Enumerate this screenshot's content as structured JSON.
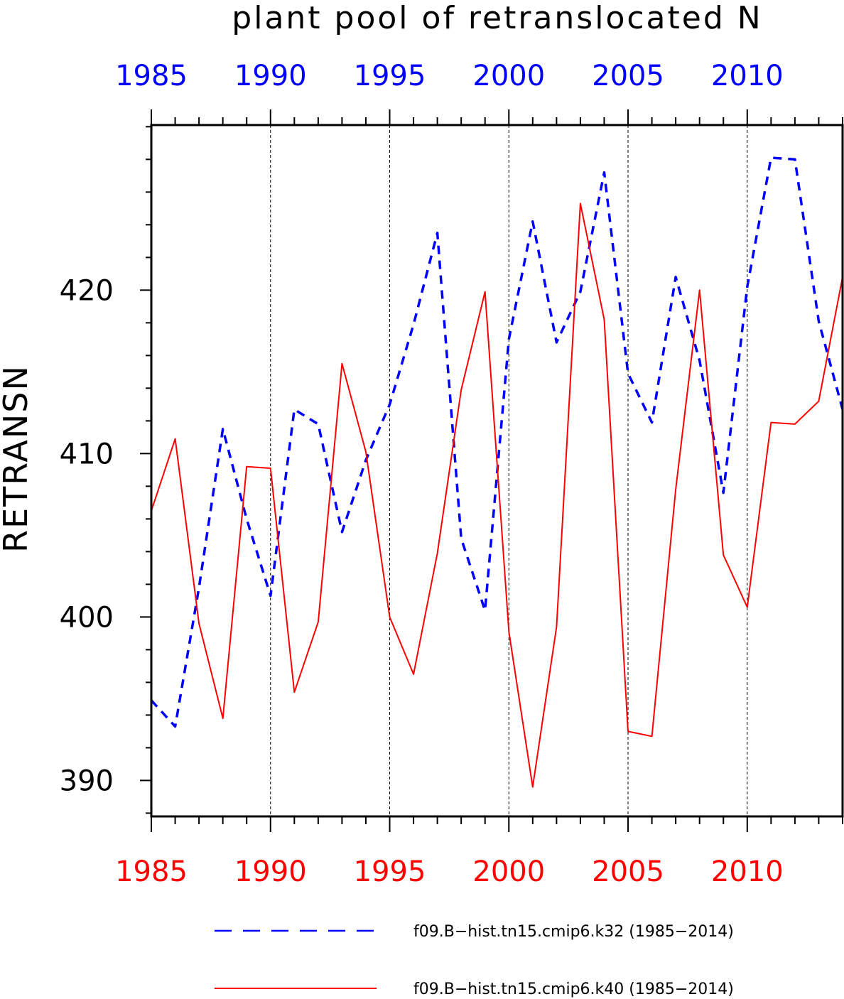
{
  "chart_data": {
    "type": "line",
    "title": "plant pool of retranslocated N",
    "ylabel": "RETRANSN",
    "xlabel": "",
    "xlim": [
      1985,
      2014
    ],
    "ylim": [
      387.8,
      430.1
    ],
    "y_major_ticks": [
      390,
      400,
      410,
      420
    ],
    "y_minor_step": 2,
    "x_major_ticks": [
      1985,
      1990,
      1995,
      2000,
      2005,
      2010
    ],
    "x_tick_labels": [
      "1985",
      "1990",
      "1995",
      "2000",
      "2005",
      "2010"
    ],
    "x_minor_step": 1,
    "vertical_grid": [
      1990,
      1995,
      2000,
      2005,
      2010
    ],
    "grid": "vertical dashed at major years",
    "legend_position": "bottom",
    "top_axis_color": "#0000ff",
    "bottom_axis_color": "#ff0000",
    "x": [
      1985,
      1986,
      1987,
      1988,
      1989,
      1990,
      1991,
      1992,
      1993,
      1994,
      1995,
      1996,
      1997,
      1998,
      1999,
      2000,
      2001,
      2002,
      2003,
      2004,
      2005,
      2006,
      2007,
      2008,
      2009,
      2010,
      2011,
      2012,
      2013,
      2014
    ],
    "series": [
      {
        "name": "f09.B−hist.tn15.cmip6.k32 (1985−2014)",
        "color": "#0000ff",
        "dash": "dashed",
        "values": [
          394.9,
          393.3,
          401.8,
          411.5,
          406.0,
          401.3,
          412.7,
          411.8,
          405.2,
          409.6,
          413.0,
          417.9,
          423.5,
          404.8,
          400.4,
          417.0,
          424.2,
          416.8,
          419.9,
          427.2,
          414.9,
          411.9,
          420.8,
          415.7,
          407.6,
          420.2,
          428.1,
          428.0,
          418.1,
          412.7
        ]
      },
      {
        "name": "f09.B−hist.tn15.cmip6.k40 (1985−2014)",
        "color": "#ff0000",
        "dash": "solid",
        "values": [
          406.5,
          410.9,
          399.6,
          393.8,
          409.2,
          409.1,
          395.4,
          399.7,
          415.5,
          410.1,
          400.0,
          396.5,
          403.9,
          413.9,
          419.9,
          399.1,
          389.6,
          399.4,
          425.3,
          418.2,
          393.0,
          392.7,
          407.8,
          420.0,
          403.8,
          400.6,
          411.9,
          411.8,
          413.2,
          420.8
        ]
      }
    ]
  }
}
